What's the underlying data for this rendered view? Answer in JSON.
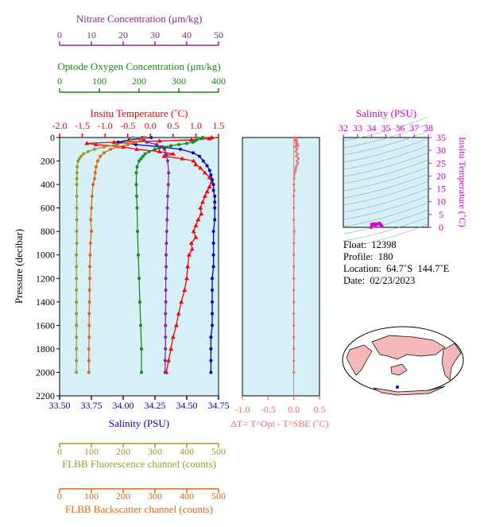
{
  "info": {
    "float": "Float:  12398",
    "profile": "Profile:  180",
    "location": "Location:  64.7˚S  144.7˚E",
    "date": "Date:  02/23/2023"
  },
  "colors": {
    "nitrate": "#8b2a90",
    "oxygen": "#1a8a1a",
    "temperature": "#ff0000",
    "salinity": "#0000dd",
    "fluorescence": "#9b9b2a",
    "backscatter": "#e06a10",
    "deltaT": "#ff6a6a",
    "ts": "#d400d4",
    "panel_bg": "#d6f0f8"
  },
  "chart_data": [
    {
      "type": "line",
      "title": "",
      "ylabel": "Pressure (decibar)",
      "ylim": [
        2200,
        0
      ],
      "yticks": [
        "0",
        "200",
        "400",
        "600",
        "800",
        "1000",
        "1200",
        "1400",
        "1600",
        "1800",
        "2000",
        "2200"
      ],
      "axes": {
        "nitrate": {
          "label": "Nitrate Concentration (μm/kg)",
          "range": [
            0,
            50
          ],
          "ticks": [
            "0",
            "10",
            "20",
            "30",
            "40",
            "50"
          ]
        },
        "oxygen": {
          "label": "Optode Oxygen Concentration (μm/kg)",
          "range": [
            0,
            400
          ],
          "ticks": [
            "0",
            "100",
            "200",
            "300",
            "400"
          ]
        },
        "temperature": {
          "label": "Insitu Temperature (˚C)",
          "range": [
            -2.0,
            1.5
          ],
          "ticks": [
            "-2.0",
            "-1.5",
            "-1.0",
            "-0.5",
            "0.0",
            "0.5",
            "1.0",
            "1.5"
          ]
        },
        "salinity": {
          "label": "Salinity (PSU)",
          "range": [
            33.5,
            34.75
          ],
          "ticks": [
            "33.50",
            "33.75",
            "34.00",
            "34.25",
            "34.50",
            "34.75"
          ]
        },
        "fluorescence": {
          "label": "FLBB Fluorescence channel (counts)",
          "range": [
            0,
            500
          ],
          "ticks": [
            "0",
            "100",
            "200",
            "300",
            "400",
            "500"
          ]
        },
        "backscatter": {
          "label": "FLBB Backscatter channel (counts)",
          "range": [
            0,
            500
          ],
          "ticks": [
            "0",
            "100",
            "200",
            "300",
            "400",
            "500"
          ]
        }
      },
      "series": [
        {
          "key": "temperature",
          "axis": "temperature",
          "marker": "triangle",
          "p": [
            0,
            10,
            20,
            30,
            40,
            50,
            60,
            80,
            100,
            120,
            140,
            160,
            180,
            200,
            230,
            260,
            300,
            340,
            380,
            420,
            460,
            500,
            550,
            600,
            650,
            700,
            750,
            800,
            850,
            900,
            950,
            1000,
            1100,
            1200,
            1300,
            1400,
            1500,
            1600,
            1700,
            1800,
            1900,
            2000
          ],
          "v": [
            1.35,
            1.3,
            0.9,
            0.2,
            -0.8,
            -1.4,
            -1.2,
            -0.6,
            -0.3,
            0.2,
            0.5,
            0.3,
            0.7,
            0.95,
            1.0,
            1.1,
            1.2,
            1.3,
            1.35,
            1.3,
            1.25,
            1.2,
            1.15,
            1.1,
            1.12,
            1.05,
            1.0,
            0.95,
            1.0,
            0.9,
            0.92,
            0.85,
            0.82,
            0.8,
            0.75,
            0.68,
            0.62,
            0.57,
            0.5,
            0.45,
            0.4,
            0.35
          ]
        },
        {
          "key": "salinity",
          "axis": "salinity",
          "marker": "circle",
          "p": [
            0,
            20,
            40,
            60,
            80,
            100,
            130,
            160,
            200,
            240,
            280,
            320,
            360,
            400,
            450,
            500,
            550,
            600,
            700,
            800,
            900,
            1000,
            1100,
            1200,
            1300,
            1400,
            1500,
            1600,
            1700,
            1800,
            1900,
            2000
          ],
          "v": [
            34.22,
            34.05,
            33.96,
            34.1,
            34.3,
            34.45,
            34.55,
            34.6,
            34.63,
            34.66,
            34.68,
            34.69,
            34.7,
            34.71,
            34.71,
            34.72,
            34.72,
            34.72,
            34.72,
            34.71,
            34.71,
            34.71,
            34.71,
            34.7,
            34.7,
            34.7,
            34.7,
            34.7,
            34.69,
            34.69,
            34.69,
            34.69
          ]
        },
        {
          "key": "oxygen",
          "axis": "oxygen",
          "marker": "circle",
          "p": [
            0,
            10,
            20,
            30,
            40,
            50,
            60,
            70,
            80,
            90,
            100,
            120,
            140,
            160,
            180,
            200,
            250,
            300,
            400,
            500,
            600,
            800,
            1000,
            1200,
            1400,
            1600,
            1800,
            2000
          ],
          "v": [
            360,
            355,
            345,
            340,
            335,
            320,
            300,
            280,
            260,
            250,
            240,
            225,
            215,
            210,
            205,
            200,
            195,
            193,
            193,
            194,
            195,
            196,
            198,
            200,
            202,
            204,
            206,
            206
          ]
        },
        {
          "key": "nitrate",
          "axis": "nitrate",
          "marker": "circle",
          "p": [
            0,
            20,
            40,
            60,
            80,
            100,
            140,
            200,
            300,
            400,
            500,
            600,
            700,
            800,
            900,
            1000,
            1100,
            1200,
            1300,
            1400,
            1500,
            1600,
            1700,
            1800,
            1900,
            2000
          ],
          "v": [
            26,
            26.5,
            27.5,
            30.5,
            32,
            33,
            33.5,
            34,
            34.3,
            34.2,
            34,
            33.9,
            33.8,
            33.7,
            33.6,
            33.5,
            33.5,
            33.4,
            33.4,
            33.4,
            33.3,
            33.3,
            33.3,
            33.3,
            33.2,
            33.2
          ]
        },
        {
          "key": "fluorescence",
          "axis": "fluorescence",
          "marker": "circle",
          "p": [
            0,
            20,
            40,
            60,
            80,
            100,
            120,
            140,
            160,
            180,
            200,
            250,
            300,
            350,
            400,
            500,
            600,
            700,
            800,
            900,
            1000,
            1100,
            1200,
            1300,
            1400,
            1500,
            1600,
            1700,
            1800,
            1900,
            2000
          ],
          "v": [
            230,
            225,
            210,
            180,
            140,
            110,
            90,
            75,
            68,
            62,
            58,
            55,
            55,
            54,
            54,
            54,
            54,
            54,
            54,
            54,
            53,
            53,
            53,
            53,
            53,
            53,
            53,
            53,
            53,
            53,
            53
          ]
        },
        {
          "key": "backscatter",
          "axis": "backscatter",
          "marker": "circle",
          "p": [
            0,
            20,
            40,
            60,
            80,
            100,
            130,
            160,
            200,
            250,
            300,
            350,
            400,
            500,
            600,
            700,
            800,
            900,
            1000,
            1100,
            1200,
            1300,
            1400,
            1500,
            1600,
            1700,
            1800,
            1900,
            2000
          ],
          "v": [
            270,
            255,
            240,
            215,
            185,
            160,
            140,
            128,
            120,
            115,
            112,
            110,
            105,
            102,
            100,
            98,
            100,
            97,
            96,
            95,
            95,
            94,
            94,
            93,
            93,
            93,
            92,
            92,
            92
          ]
        }
      ]
    },
    {
      "type": "line",
      "title": "",
      "xlabel": "ΔT= T^Opt - T^SBE (˚C)",
      "xlim": [
        -1.0,
        0.5
      ],
      "xticks": [
        "-1.0",
        "-0.5",
        "0.0",
        "0.5"
      ],
      "ylim": [
        2200,
        0
      ],
      "series": [
        {
          "key": "deltaT",
          "p": [
            0,
            10,
            20,
            30,
            40,
            50,
            60,
            70,
            80,
            100,
            120,
            140,
            160,
            180,
            200,
            220,
            240,
            260,
            280,
            300,
            350,
            400,
            450,
            500,
            600,
            700,
            800,
            900,
            1000,
            1100,
            1200,
            1300,
            1400,
            1500,
            1600,
            1700,
            1800,
            1900,
            2000
          ],
          "v": [
            0.02,
            0.05,
            0.03,
            0.06,
            0.04,
            0.07,
            0.05,
            0.08,
            0.03,
            0.06,
            0.04,
            0.07,
            0.05,
            0.09,
            0.06,
            0.08,
            0.05,
            0.04,
            0.03,
            0.02,
            0.01,
            0.0,
            0.01,
            0.0,
            0.0,
            0.0,
            0.01,
            0.0,
            0.0,
            0.0,
            0.0,
            0.0,
            0.0,
            0.0,
            0.0,
            0.0,
            0.0,
            0.0,
            0.0
          ]
        }
      ]
    },
    {
      "type": "scatter",
      "title": "",
      "xlabel": "Salinity (PSU)",
      "ylabel": "Insitu Temperature (˚C)",
      "xlim": [
        32,
        38
      ],
      "ylim": [
        0,
        35
      ],
      "xticks": [
        "32",
        "33",
        "34",
        "35",
        "36",
        "37",
        "38"
      ],
      "yticks": [
        "0",
        "5",
        "10",
        "15",
        "20",
        "25",
        "30",
        "35"
      ],
      "points": [
        [
          34.0,
          1.2
        ],
        [
          34.05,
          1.0
        ],
        [
          34.1,
          1.3
        ],
        [
          34.2,
          0.8
        ],
        [
          34.3,
          1.0
        ],
        [
          34.4,
          1.3
        ],
        [
          34.5,
          1.4
        ],
        [
          34.6,
          1.2
        ],
        [
          34.65,
          1.0
        ],
        [
          34.7,
          0.6
        ],
        [
          34.72,
          0.4
        ],
        [
          34.55,
          1.6
        ],
        [
          33.96,
          0.0
        ],
        [
          34.22,
          1.35
        ]
      ]
    }
  ]
}
